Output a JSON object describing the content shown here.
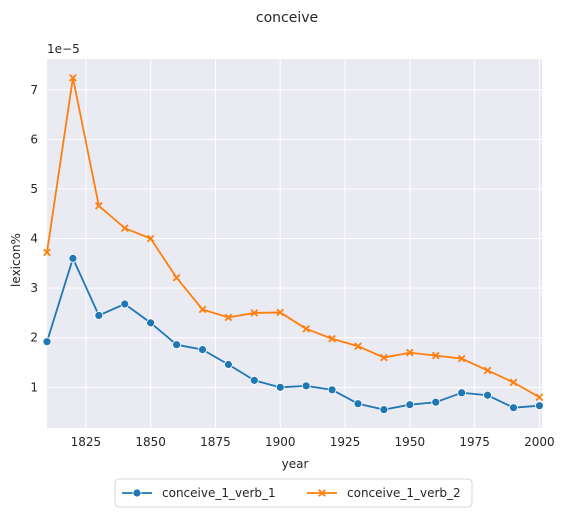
{
  "chart_data": {
    "type": "line",
    "title": "conceive",
    "xlabel": "year",
    "ylabel": "lexicon%",
    "y_scale_label": "1e−5",
    "xlim": [
      1810,
      2001
    ],
    "ylim": [
      0.18,
      7.62
    ],
    "x_ticks": [
      1825,
      1850,
      1875,
      1900,
      1925,
      1950,
      1975,
      2000
    ],
    "y_ticks": [
      1,
      2,
      3,
      4,
      5,
      6,
      7
    ],
    "grid": true,
    "legend_position": "bottom-center",
    "background": "#eaeaf2",
    "x": [
      1810,
      1820,
      1830,
      1840,
      1850,
      1860,
      1870,
      1880,
      1890,
      1900,
      1910,
      1920,
      1930,
      1940,
      1950,
      1960,
      1970,
      1980,
      1990,
      2000
    ],
    "series": [
      {
        "name": "conceive_1_verb_1",
        "color": "#1f77b4",
        "marker": "circle",
        "values": [
          1.92,
          3.6,
          2.45,
          2.68,
          2.3,
          1.86,
          1.76,
          1.46,
          1.14,
          1.0,
          1.03,
          0.95,
          0.67,
          0.55,
          0.65,
          0.7,
          0.89,
          0.84,
          0.59,
          0.63
        ]
      },
      {
        "name": "conceive_1_verb_2",
        "color": "#ff7f0e",
        "marker": "x",
        "values": [
          3.72,
          7.24,
          4.66,
          4.21,
          4.0,
          3.21,
          2.57,
          2.41,
          2.5,
          2.51,
          2.18,
          1.98,
          1.83,
          1.6,
          1.7,
          1.64,
          1.58,
          1.34,
          1.1,
          0.8
        ]
      }
    ]
  }
}
